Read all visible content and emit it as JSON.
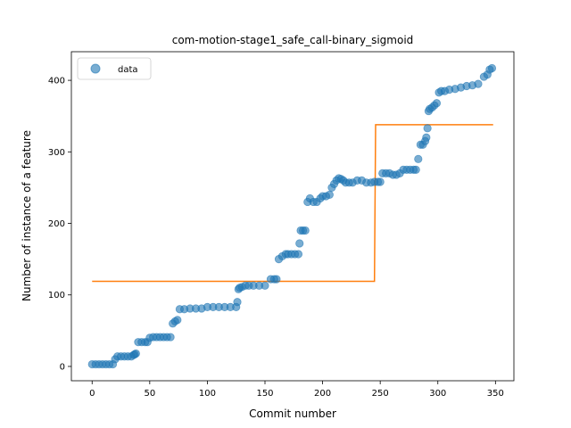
{
  "chart_data": {
    "type": "scatter",
    "title": "com-motion-stage1_safe_call-binary_sigmoid",
    "xlabel": "Commit number",
    "ylabel": "Number of instance of a feature",
    "xlim": [
      -18,
      366
    ],
    "ylim": [
      -20,
      440
    ],
    "xticks": [
      0,
      50,
      100,
      150,
      200,
      250,
      300,
      350
    ],
    "yticks": [
      0,
      100,
      200,
      300,
      400
    ],
    "legend": {
      "position": "top-left",
      "entries": [
        "data"
      ]
    },
    "colors": {
      "data": "#1f77b4",
      "fit": "#ff7f0e",
      "frame": "#000000"
    },
    "series": [
      {
        "name": "data",
        "kind": "scatter",
        "x": [
          0,
          3,
          6,
          9,
          12,
          15,
          18,
          20,
          22,
          25,
          28,
          31,
          34,
          36,
          37,
          38,
          40,
          43,
          46,
          48,
          50,
          53,
          56,
          59,
          62,
          65,
          68,
          70,
          72,
          74,
          76,
          80,
          85,
          90,
          95,
          100,
          105,
          110,
          115,
          120,
          125,
          126,
          127,
          128,
          130,
          133,
          136,
          140,
          145,
          150,
          155,
          158,
          160,
          162,
          165,
          168,
          170,
          173,
          176,
          179,
          180,
          181,
          183,
          185,
          187,
          189,
          192,
          195,
          198,
          200,
          203,
          206,
          208,
          210,
          212,
          214,
          216,
          218,
          220,
          223,
          226,
          230,
          234,
          238,
          242,
          245,
          248,
          250,
          252,
          255,
          258,
          261,
          264,
          267,
          270,
          273,
          276,
          279,
          281,
          283,
          285,
          287,
          289,
          290,
          291,
          292,
          293,
          295,
          297,
          299,
          301,
          303,
          306,
          310,
          315,
          320,
          325,
          330,
          335,
          340,
          343,
          345,
          347
        ],
        "y": [
          3,
          3,
          3,
          3,
          3,
          3,
          3,
          10,
          14,
          14,
          14,
          14,
          14,
          16,
          17,
          18,
          34,
          34,
          34,
          34,
          40,
          41,
          41,
          41,
          41,
          41,
          41,
          60,
          63,
          65,
          80,
          80,
          81,
          81,
          81,
          83,
          83,
          83,
          83,
          83,
          83,
          90,
          108,
          110,
          111,
          113,
          113,
          113,
          113,
          113,
          122,
          122,
          122,
          150,
          154,
          157,
          157,
          157,
          157,
          157,
          172,
          190,
          190,
          190,
          230,
          235,
          230,
          230,
          235,
          238,
          238,
          240,
          250,
          255,
          260,
          263,
          262,
          260,
          257,
          257,
          257,
          260,
          260,
          257,
          257,
          258,
          258,
          258,
          270,
          270,
          270,
          268,
          268,
          270,
          275,
          275,
          275,
          275,
          275,
          290,
          310,
          310,
          315,
          320,
          333,
          357,
          360,
          362,
          365,
          368,
          383,
          385,
          385,
          387,
          388,
          390,
          392,
          393,
          395,
          405,
          408,
          415,
          417
        ]
      },
      {
        "name": "",
        "kind": "line",
        "x": [
          0,
          245,
          246,
          348
        ],
        "y": [
          119,
          119,
          338,
          338
        ]
      }
    ]
  }
}
